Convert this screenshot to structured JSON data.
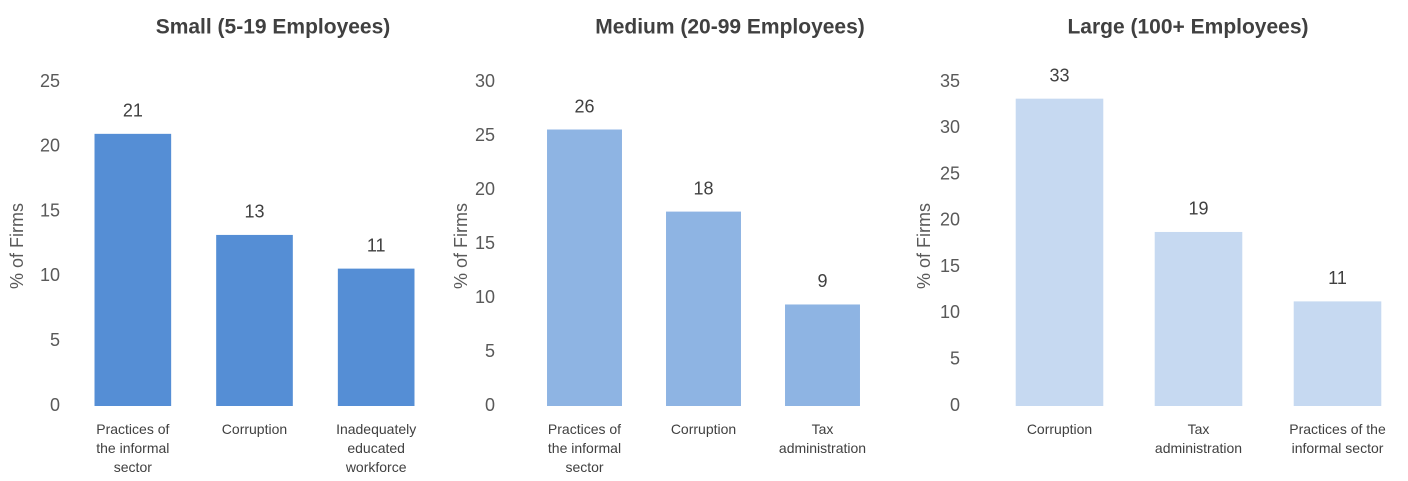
{
  "chart_data": [
    {
      "type": "bar",
      "title": "Small (5-19 Employees)",
      "y_label": "% of Firms",
      "categories": [
        "Practices of the informal sector",
        "Corruption",
        "Inadequately educated workforce"
      ],
      "values": [
        21.0,
        13.2,
        10.6
      ],
      "value_labels": [
        "21",
        "13",
        "11"
      ],
      "color": "#558ed5",
      "ylim": [
        0,
        25
      ],
      "yticks": [
        0,
        5,
        10,
        15,
        20,
        25
      ],
      "grid": false
    },
    {
      "type": "bar",
      "title": "Medium (20-99 Employees)",
      "y_label": "% of Firms",
      "categories": [
        "Practices of the informal sector",
        "Corruption",
        "Tax administration"
      ],
      "values": [
        25.6,
        18.0,
        9.4
      ],
      "value_labels": [
        "26",
        "18",
        "9"
      ],
      "color": "#8eb4e3",
      "ylim": [
        0,
        30
      ],
      "yticks": [
        0,
        5,
        10,
        15,
        20,
        25,
        30
      ],
      "grid": false
    },
    {
      "type": "bar",
      "title": "Large (100+ Employees)",
      "y_label": "% of Firms",
      "categories": [
        "Corruption",
        "Tax administration",
        "Practices of the informal sector"
      ],
      "values": [
        33.2,
        18.8,
        11.3
      ],
      "value_labels": [
        "33",
        "19",
        "11"
      ],
      "color": "#c6d9f1",
      "ylim": [
        0,
        35
      ],
      "yticks": [
        0,
        5,
        10,
        15,
        20,
        25,
        30,
        35
      ],
      "grid": false
    }
  ]
}
